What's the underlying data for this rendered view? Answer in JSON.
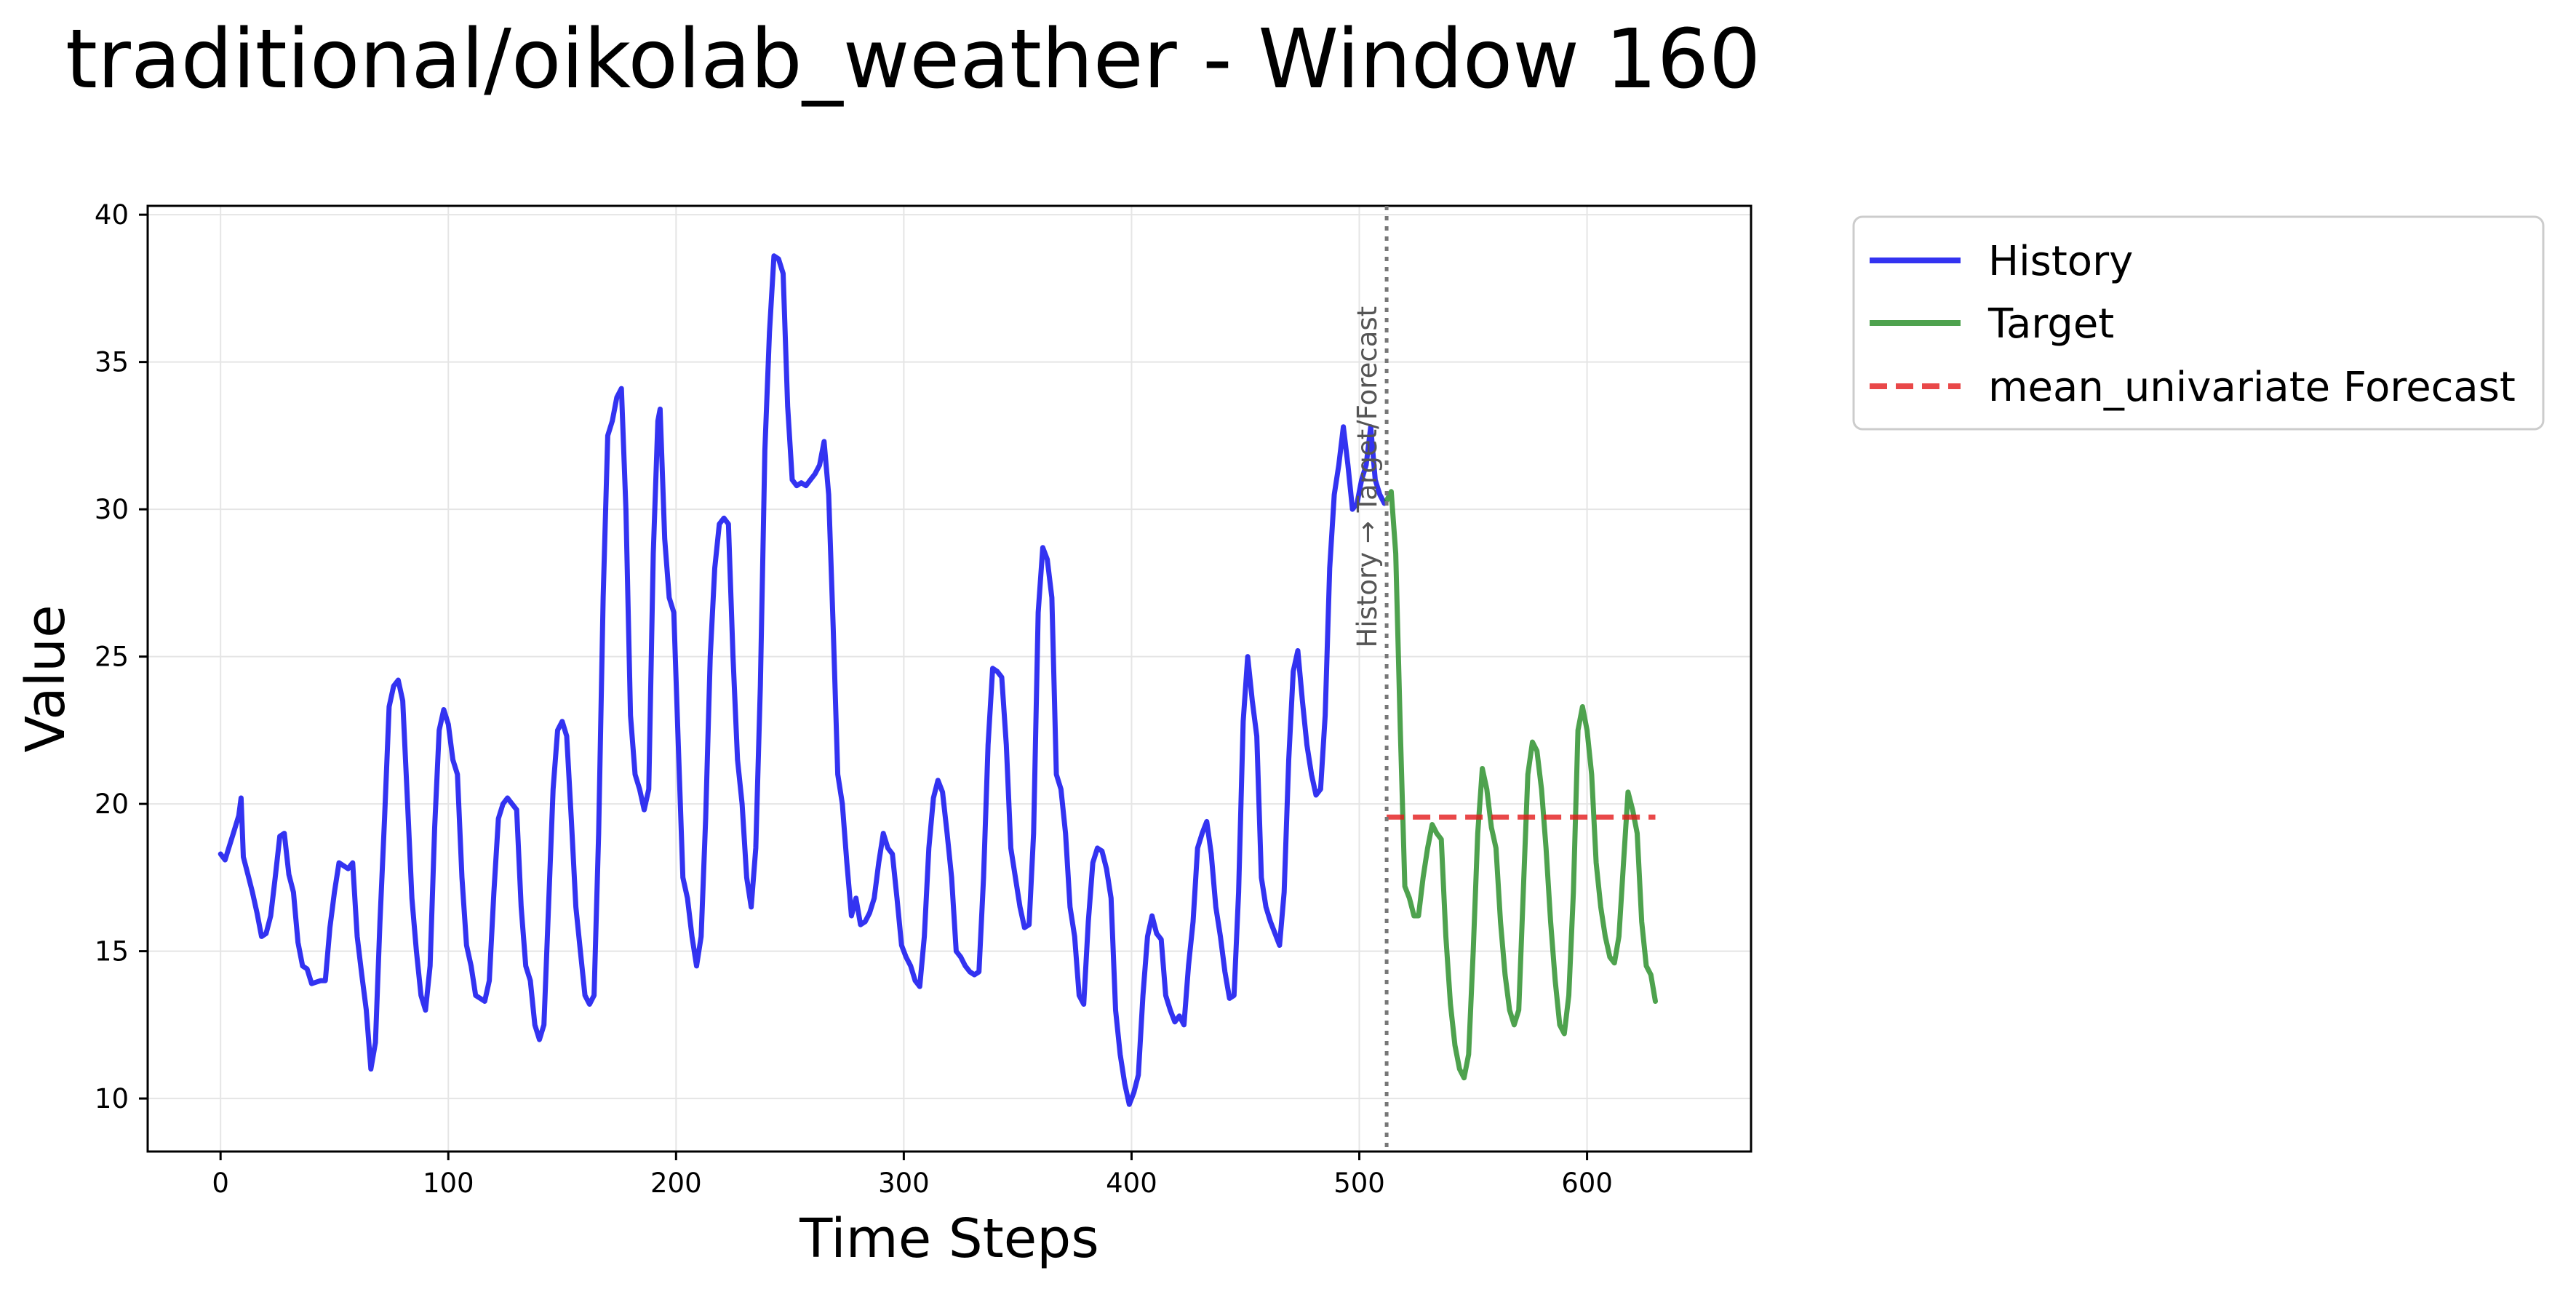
{
  "chart_data": {
    "type": "line",
    "title": "traditional/oikolab_weather - Window 160",
    "xlabel": "Time Steps",
    "ylabel": "Value",
    "xlim": [
      -32,
      672
    ],
    "ylim": [
      8.2,
      40.3
    ],
    "xticks": [
      0,
      100,
      200,
      300,
      400,
      500,
      600
    ],
    "yticks": [
      10,
      15,
      20,
      25,
      30,
      35,
      40
    ],
    "grid": true,
    "legend_position": "outside-top-right",
    "split_index": 512,
    "split_label": "History → Target/Forecast",
    "colors": {
      "history": "#0000ee",
      "target": "#228b22",
      "forecast": "#e41a1c",
      "split": "#777777"
    },
    "series": [
      {
        "name": "History",
        "style": "solid",
        "color": "#0000ee",
        "points": [
          [
            0,
            18.3
          ],
          [
            2,
            18.1
          ],
          [
            4,
            18.6
          ],
          [
            6,
            19.1
          ],
          [
            8,
            19.6
          ],
          [
            9,
            20.2
          ],
          [
            10,
            18.2
          ],
          [
            12,
            17.6
          ],
          [
            14,
            17.0
          ],
          [
            16,
            16.3
          ],
          [
            18,
            15.5
          ],
          [
            20,
            15.6
          ],
          [
            22,
            16.2
          ],
          [
            24,
            17.5
          ],
          [
            26,
            18.9
          ],
          [
            28,
            19.0
          ],
          [
            30,
            17.6
          ],
          [
            32,
            17.0
          ],
          [
            34,
            15.3
          ],
          [
            36,
            14.5
          ],
          [
            38,
            14.4
          ],
          [
            40,
            13.9
          ],
          [
            44,
            14.0
          ],
          [
            46,
            14.0
          ],
          [
            48,
            15.8
          ],
          [
            50,
            17.0
          ],
          [
            52,
            18.0
          ],
          [
            56,
            17.8
          ],
          [
            58,
            18.0
          ],
          [
            60,
            15.5
          ],
          [
            62,
            14.2
          ],
          [
            64,
            13.0
          ],
          [
            66,
            11.0
          ],
          [
            68,
            11.9
          ],
          [
            70,
            16.0
          ],
          [
            72,
            19.5
          ],
          [
            74,
            23.3
          ],
          [
            76,
            24.0
          ],
          [
            78,
            24.2
          ],
          [
            80,
            23.5
          ],
          [
            82,
            20.2
          ],
          [
            84,
            16.8
          ],
          [
            86,
            15.0
          ],
          [
            88,
            13.5
          ],
          [
            90,
            13.0
          ],
          [
            92,
            14.5
          ],
          [
            94,
            19.2
          ],
          [
            96,
            22.5
          ],
          [
            98,
            23.2
          ],
          [
            100,
            22.7
          ],
          [
            102,
            21.5
          ],
          [
            104,
            21.0
          ],
          [
            106,
            17.5
          ],
          [
            108,
            15.2
          ],
          [
            110,
            14.5
          ],
          [
            112,
            13.5
          ],
          [
            114,
            13.4
          ],
          [
            116,
            13.3
          ],
          [
            118,
            14.0
          ],
          [
            120,
            17.0
          ],
          [
            122,
            19.5
          ],
          [
            124,
            20.0
          ],
          [
            126,
            20.2
          ],
          [
            128,
            20.0
          ],
          [
            130,
            19.8
          ],
          [
            132,
            16.5
          ],
          [
            134,
            14.5
          ],
          [
            136,
            14.0
          ],
          [
            138,
            12.5
          ],
          [
            140,
            12.0
          ],
          [
            142,
            12.5
          ],
          [
            144,
            16.5
          ],
          [
            146,
            20.5
          ],
          [
            148,
            22.5
          ],
          [
            150,
            22.8
          ],
          [
            152,
            22.3
          ],
          [
            154,
            19.5
          ],
          [
            156,
            16.5
          ],
          [
            158,
            15.0
          ],
          [
            160,
            13.5
          ],
          [
            162,
            13.2
          ],
          [
            164,
            13.5
          ],
          [
            166,
            19.0
          ],
          [
            168,
            27.0
          ],
          [
            170,
            32.5
          ],
          [
            172,
            33.0
          ],
          [
            174,
            33.8
          ],
          [
            176,
            34.1
          ],
          [
            178,
            30.0
          ],
          [
            180,
            23.0
          ],
          [
            182,
            21.0
          ],
          [
            184,
            20.5
          ],
          [
            186,
            19.8
          ],
          [
            188,
            20.5
          ],
          [
            190,
            28.5
          ],
          [
            192,
            33.0
          ],
          [
            193,
            33.4
          ],
          [
            195,
            29.0
          ],
          [
            197,
            27.0
          ],
          [
            199,
            26.5
          ],
          [
            201,
            22.0
          ],
          [
            203,
            17.5
          ],
          [
            205,
            16.8
          ],
          [
            207,
            15.5
          ],
          [
            209,
            14.5
          ],
          [
            211,
            15.5
          ],
          [
            213,
            19.5
          ],
          [
            215,
            25.0
          ],
          [
            217,
            28.0
          ],
          [
            219,
            29.5
          ],
          [
            221,
            29.7
          ],
          [
            223,
            29.5
          ],
          [
            225,
            25.0
          ],
          [
            227,
            21.5
          ],
          [
            229,
            20.0
          ],
          [
            231,
            17.5
          ],
          [
            233,
            16.5
          ],
          [
            235,
            18.5
          ],
          [
            237,
            24.0
          ],
          [
            239,
            32.0
          ],
          [
            241,
            36.0
          ],
          [
            243,
            38.6
          ],
          [
            245,
            38.5
          ],
          [
            247,
            38.0
          ],
          [
            249,
            33.5
          ],
          [
            251,
            31.0
          ],
          [
            253,
            30.8
          ],
          [
            255,
            30.9
          ],
          [
            257,
            30.8
          ],
          [
            259,
            31.0
          ],
          [
            261,
            31.2
          ],
          [
            263,
            31.5
          ],
          [
            265,
            32.3
          ],
          [
            267,
            30.5
          ],
          [
            269,
            26.0
          ],
          [
            271,
            21.0
          ],
          [
            273,
            20.0
          ],
          [
            275,
            18.0
          ],
          [
            277,
            16.2
          ],
          [
            279,
            16.8
          ],
          [
            281,
            15.9
          ],
          [
            283,
            16.0
          ],
          [
            285,
            16.3
          ],
          [
            287,
            16.8
          ],
          [
            289,
            18.0
          ],
          [
            291,
            19.0
          ],
          [
            293,
            18.5
          ],
          [
            295,
            18.3
          ],
          [
            297,
            16.8
          ],
          [
            299,
            15.2
          ],
          [
            301,
            14.8
          ],
          [
            303,
            14.5
          ],
          [
            305,
            14.0
          ],
          [
            307,
            13.8
          ],
          [
            309,
            15.5
          ],
          [
            311,
            18.5
          ],
          [
            313,
            20.2
          ],
          [
            315,
            20.8
          ],
          [
            317,
            20.4
          ],
          [
            319,
            19.0
          ],
          [
            321,
            17.5
          ],
          [
            323,
            15.0
          ],
          [
            325,
            14.8
          ],
          [
            327,
            14.5
          ],
          [
            329,
            14.3
          ],
          [
            331,
            14.2
          ],
          [
            333,
            14.3
          ],
          [
            335,
            17.5
          ],
          [
            337,
            22.0
          ],
          [
            339,
            24.6
          ],
          [
            341,
            24.5
          ],
          [
            343,
            24.3
          ],
          [
            345,
            22.0
          ],
          [
            347,
            18.5
          ],
          [
            349,
            17.5
          ],
          [
            351,
            16.5
          ],
          [
            353,
            15.8
          ],
          [
            355,
            15.9
          ],
          [
            357,
            19.0
          ],
          [
            359,
            26.5
          ],
          [
            361,
            28.7
          ],
          [
            363,
            28.3
          ],
          [
            365,
            27.0
          ],
          [
            367,
            21.0
          ],
          [
            369,
            20.5
          ],
          [
            371,
            19.0
          ],
          [
            373,
            16.5
          ],
          [
            375,
            15.5
          ],
          [
            377,
            13.5
          ],
          [
            379,
            13.2
          ],
          [
            381,
            16.0
          ],
          [
            383,
            18.0
          ],
          [
            385,
            18.5
          ],
          [
            387,
            18.4
          ],
          [
            389,
            17.8
          ],
          [
            391,
            16.8
          ],
          [
            393,
            13.0
          ],
          [
            395,
            11.5
          ],
          [
            397,
            10.5
          ],
          [
            399,
            9.8
          ],
          [
            401,
            10.2
          ],
          [
            403,
            10.8
          ],
          [
            405,
            13.5
          ],
          [
            407,
            15.5
          ],
          [
            409,
            16.2
          ],
          [
            411,
            15.6
          ],
          [
            413,
            15.4
          ],
          [
            415,
            13.5
          ],
          [
            417,
            13.0
          ],
          [
            419,
            12.6
          ],
          [
            421,
            12.8
          ],
          [
            423,
            12.5
          ],
          [
            425,
            14.5
          ],
          [
            427,
            16.0
          ],
          [
            429,
            18.5
          ],
          [
            431,
            19.0
          ],
          [
            433,
            19.4
          ],
          [
            435,
            18.3
          ],
          [
            437,
            16.5
          ],
          [
            439,
            15.5
          ],
          [
            441,
            14.3
          ],
          [
            443,
            13.4
          ],
          [
            445,
            13.5
          ],
          [
            447,
            17.0
          ],
          [
            449,
            22.8
          ],
          [
            451,
            25.0
          ],
          [
            453,
            23.5
          ],
          [
            455,
            22.3
          ],
          [
            457,
            17.5
          ],
          [
            459,
            16.5
          ],
          [
            461,
            16.0
          ],
          [
            463,
            15.6
          ],
          [
            465,
            15.2
          ],
          [
            467,
            17.0
          ],
          [
            469,
            21.5
          ],
          [
            471,
            24.5
          ],
          [
            473,
            25.2
          ],
          [
            475,
            23.5
          ],
          [
            477,
            22.0
          ],
          [
            479,
            21.0
          ],
          [
            481,
            20.3
          ],
          [
            483,
            20.5
          ],
          [
            485,
            23.0
          ],
          [
            487,
            28.0
          ],
          [
            489,
            30.5
          ],
          [
            491,
            31.5
          ],
          [
            493,
            32.8
          ],
          [
            495,
            31.5
          ],
          [
            497,
            30.0
          ],
          [
            499,
            30.2
          ],
          [
            501,
            31.0
          ],
          [
            503,
            31.5
          ],
          [
            505,
            32.8
          ],
          [
            507,
            31.0
          ],
          [
            509,
            30.5
          ],
          [
            511,
            30.2
          ]
        ]
      },
      {
        "name": "Target",
        "style": "solid",
        "color": "#228b22",
        "points": [
          [
            512,
            30.3
          ],
          [
            514,
            30.6
          ],
          [
            516,
            28.5
          ],
          [
            518,
            22.5
          ],
          [
            520,
            17.2
          ],
          [
            522,
            16.8
          ],
          [
            524,
            16.2
          ],
          [
            526,
            16.2
          ],
          [
            528,
            17.5
          ],
          [
            530,
            18.5
          ],
          [
            532,
            19.3
          ],
          [
            534,
            19.0
          ],
          [
            536,
            18.8
          ],
          [
            538,
            15.5
          ],
          [
            540,
            13.2
          ],
          [
            542,
            11.8
          ],
          [
            544,
            11.0
          ],
          [
            546,
            10.7
          ],
          [
            548,
            11.5
          ],
          [
            550,
            15.0
          ],
          [
            552,
            19.0
          ],
          [
            554,
            21.2
          ],
          [
            556,
            20.5
          ],
          [
            558,
            19.2
          ],
          [
            560,
            18.5
          ],
          [
            562,
            16.0
          ],
          [
            564,
            14.2
          ],
          [
            566,
            13.0
          ],
          [
            568,
            12.5
          ],
          [
            570,
            13.0
          ],
          [
            572,
            17.0
          ],
          [
            574,
            21.0
          ],
          [
            576,
            22.1
          ],
          [
            578,
            21.8
          ],
          [
            580,
            20.5
          ],
          [
            582,
            18.5
          ],
          [
            584,
            16.0
          ],
          [
            586,
            14.0
          ],
          [
            588,
            12.5
          ],
          [
            590,
            12.2
          ],
          [
            592,
            13.5
          ],
          [
            594,
            17.0
          ],
          [
            596,
            22.5
          ],
          [
            598,
            23.3
          ],
          [
            600,
            22.5
          ],
          [
            602,
            21.0
          ],
          [
            604,
            18.0
          ],
          [
            606,
            16.5
          ],
          [
            608,
            15.5
          ],
          [
            610,
            14.8
          ],
          [
            612,
            14.6
          ],
          [
            614,
            15.5
          ],
          [
            616,
            18.0
          ],
          [
            618,
            20.4
          ],
          [
            620,
            19.8
          ],
          [
            622,
            19.0
          ],
          [
            624,
            16.0
          ],
          [
            626,
            14.5
          ],
          [
            628,
            14.2
          ],
          [
            630,
            13.3
          ]
        ]
      },
      {
        "name": "mean_univariate Forecast",
        "style": "dashed",
        "color": "#e41a1c",
        "points": [
          [
            512,
            19.55
          ],
          [
            630,
            19.55
          ]
        ]
      }
    ]
  }
}
